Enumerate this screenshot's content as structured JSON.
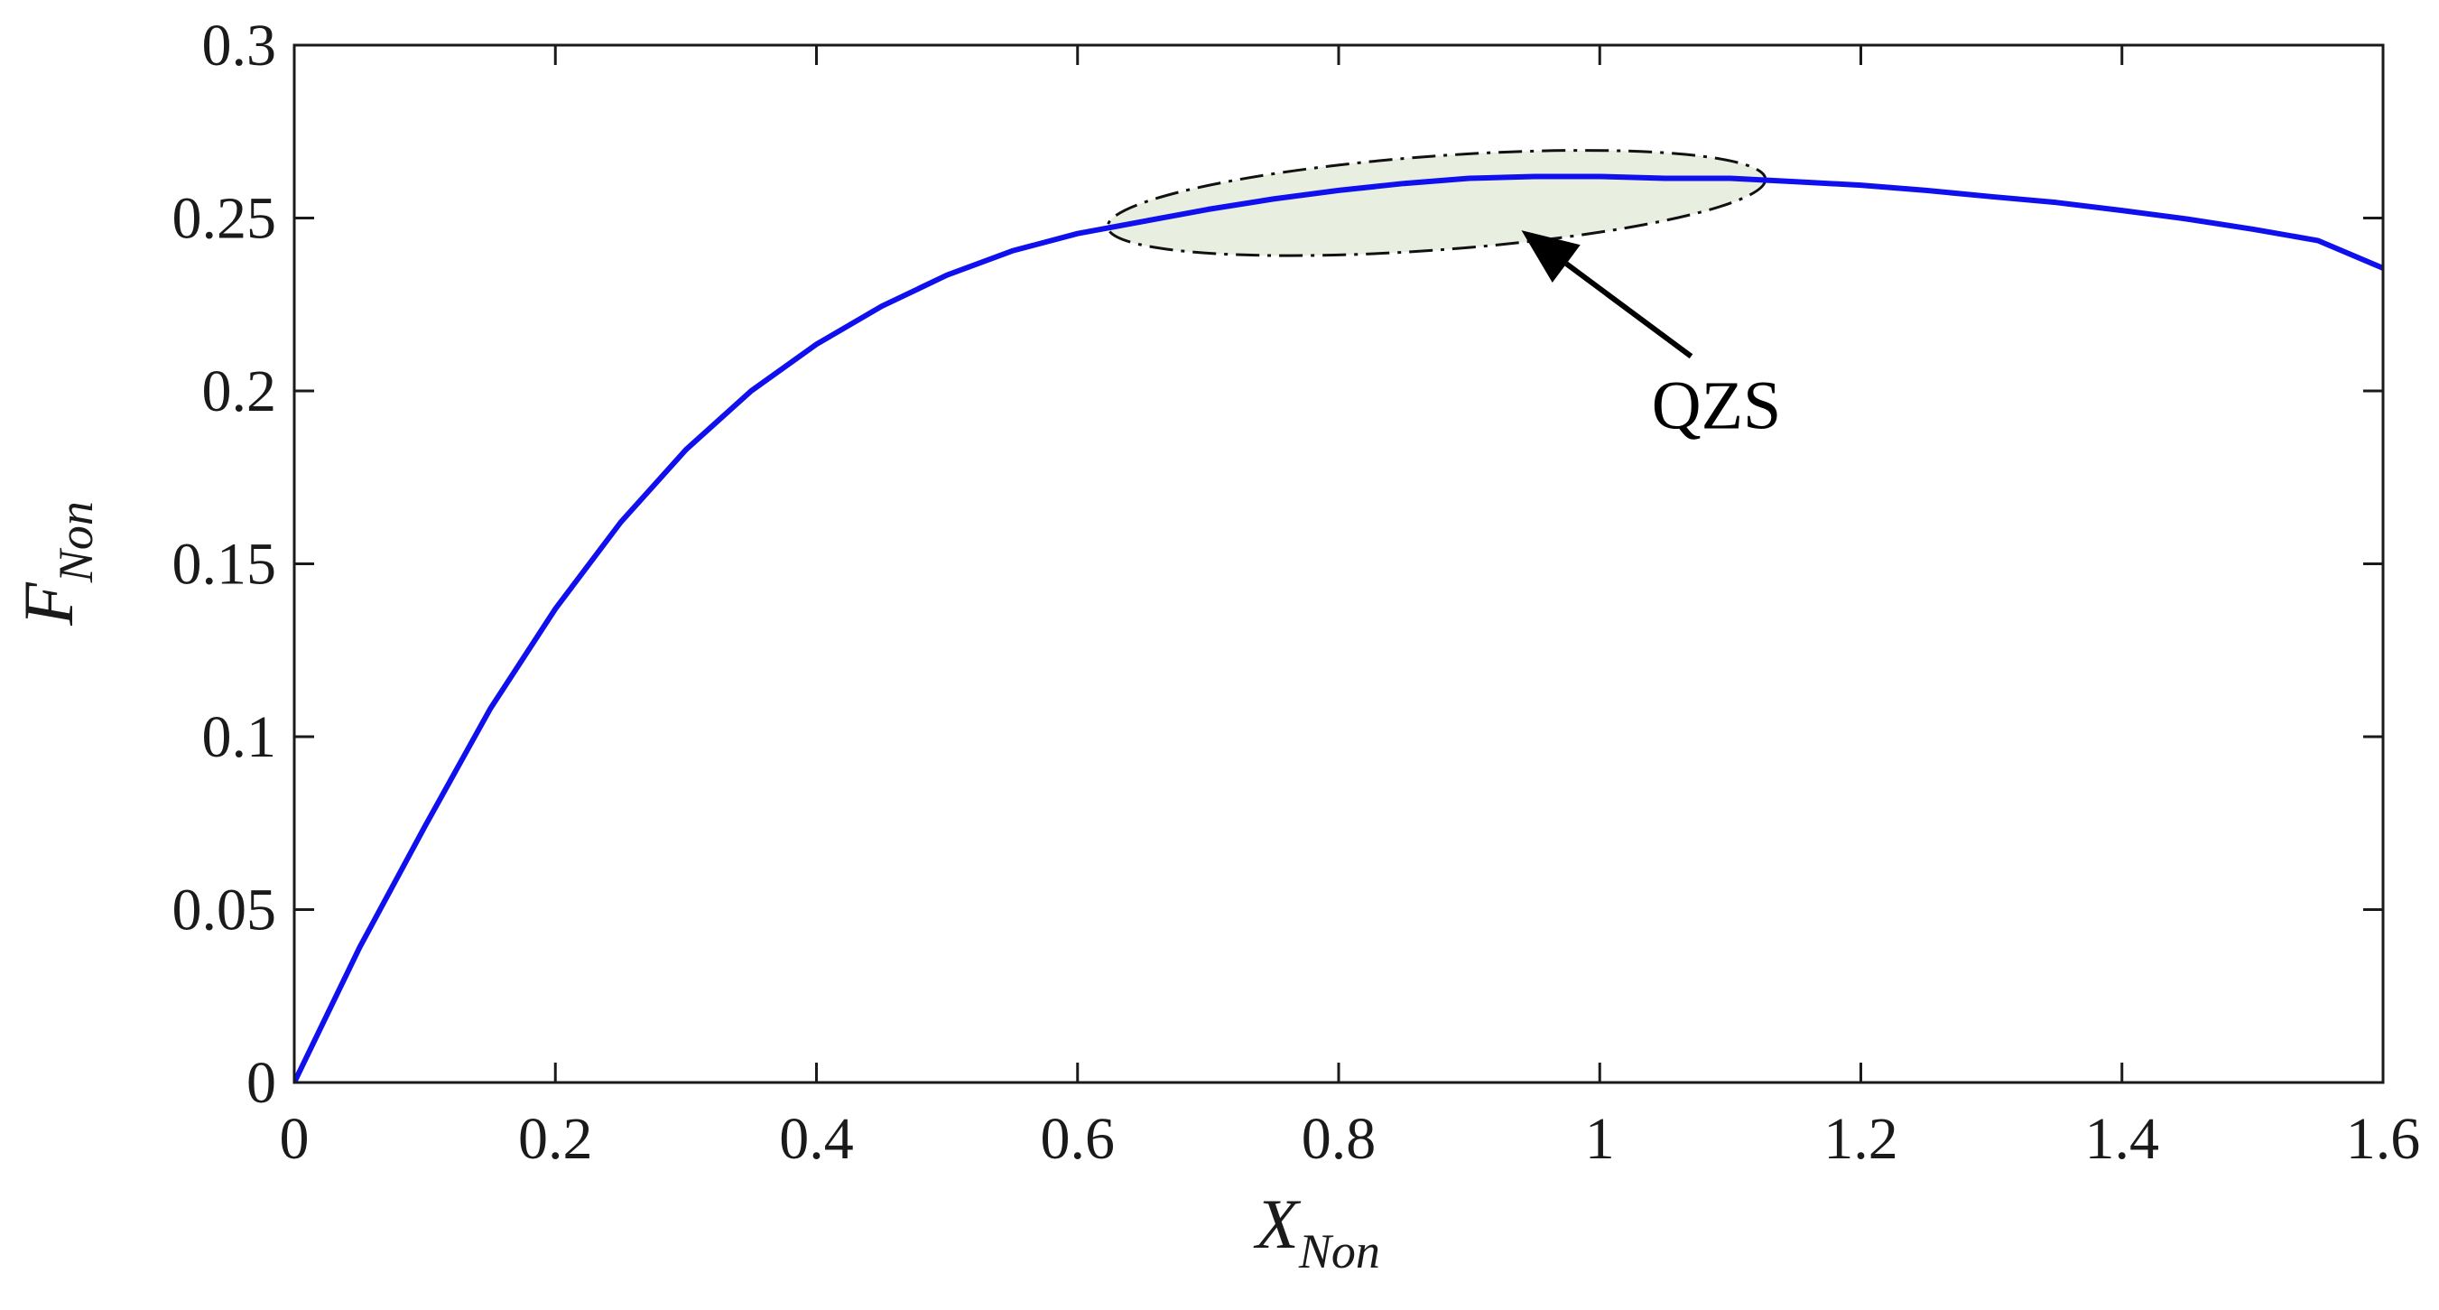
{
  "chart_data": {
    "type": "line",
    "xlabel": {
      "main": "X",
      "sub": "Non"
    },
    "ylabel": {
      "main": "F",
      "sub": "Non"
    },
    "xlim": [
      0,
      1.6
    ],
    "ylim": [
      0,
      0.3
    ],
    "xticks": [
      "0",
      "0.2",
      "0.4",
      "0.6",
      "0.8",
      "1",
      "1.2",
      "1.4",
      "1.6"
    ],
    "yticks": [
      "0",
      "0.05",
      "0.1",
      "0.15",
      "0.2",
      "0.25",
      "0.3"
    ],
    "grid": false,
    "series": [
      {
        "color": "#1010ee",
        "x": [
          0,
          0.05,
          0.1,
          0.15,
          0.2,
          0.25,
          0.3,
          0.35,
          0.4,
          0.45,
          0.5,
          0.55,
          0.6,
          0.65,
          0.7,
          0.75,
          0.8,
          0.85,
          0.9,
          0.95,
          1.0,
          1.05,
          1.1,
          1.15,
          1.2,
          1.25,
          1.3,
          1.35,
          1.4,
          1.45,
          1.5,
          1.55,
          1.6
        ],
        "y": [
          0,
          0.039,
          0.074,
          0.108,
          0.137,
          0.162,
          0.183,
          0.2,
          0.2135,
          0.2245,
          0.2335,
          0.2405,
          0.2455,
          0.249,
          0.2525,
          0.2555,
          0.258,
          0.26,
          0.2615,
          0.262,
          0.262,
          0.2615,
          0.2615,
          0.2605,
          0.2595,
          0.258,
          0.2562,
          0.2545,
          0.2522,
          0.2497,
          0.2468,
          0.2435,
          0.2355
        ]
      }
    ],
    "annotation": {
      "text": "QZS",
      "highlight_x_range": [
        0.63,
        1.12
      ],
      "highlight_color": "#e8efe0",
      "arrow_tip": {
        "x": 0.94,
        "y": 0.248
      },
      "arrow_tail": {
        "x": 1.07,
        "y": 0.21
      }
    }
  }
}
